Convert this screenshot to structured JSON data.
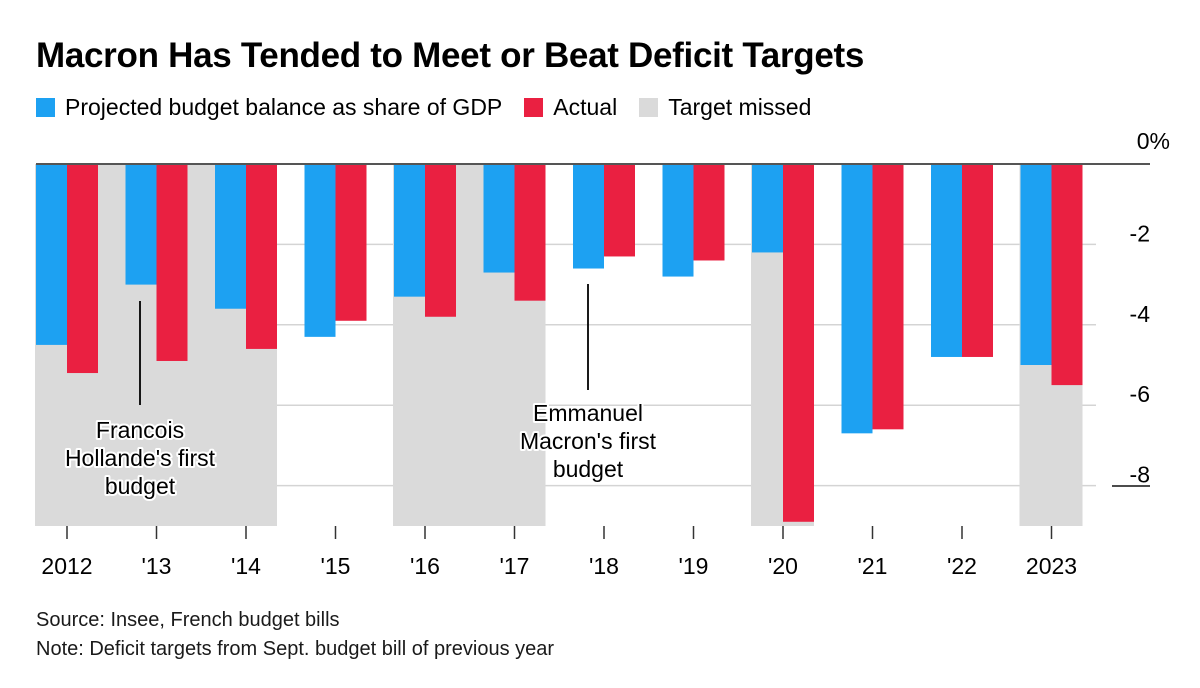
{
  "colors": {
    "projected": "#1da1f2",
    "actual": "#ea2041",
    "missed": "#dadada",
    "grid": "#d4d4d4",
    "text": "#000000"
  },
  "chart_data": {
    "type": "bar",
    "title": "Macron Has Tended to Meet or Beat Deficit Targets",
    "legend_position": "top-left",
    "grid": true,
    "y_axis_side": "right",
    "ylim": [
      -9,
      0
    ],
    "yticks": [
      {
        "value": 0,
        "label": "0%"
      },
      {
        "value": -2,
        "label": "-2"
      },
      {
        "value": -4,
        "label": "-4"
      },
      {
        "value": -6,
        "label": "-6"
      },
      {
        "value": -8,
        "label": "-8"
      }
    ],
    "categories": [
      "2012",
      "'13",
      "'14",
      "'15",
      "'16",
      "'17",
      "'18",
      "'19",
      "'20",
      "'21",
      "'22",
      "2023"
    ],
    "series": [
      {
        "name": "Projected budget balance as share of GDP",
        "color_key": "projected",
        "values": [
          -4.5,
          -3.0,
          -3.6,
          -4.3,
          -3.3,
          -2.7,
          -2.6,
          -2.8,
          -2.2,
          -6.7,
          -4.8,
          -5.0
        ]
      },
      {
        "name": "Actual",
        "color_key": "actual",
        "values": [
          -5.2,
          -4.9,
          -4.6,
          -3.9,
          -3.8,
          -3.4,
          -2.3,
          -2.4,
          -8.9,
          -6.6,
          -4.8,
          -5.5
        ]
      }
    ],
    "target_missed": {
      "name": "Target missed",
      "ranges": [
        [
          "2012",
          "'14"
        ],
        [
          "'16",
          "'17"
        ],
        [
          "'20",
          "'20"
        ],
        [
          "2023",
          "2023"
        ]
      ]
    },
    "annotations": [
      {
        "category": "'13",
        "lines": [
          "Francois",
          "Hollande's first",
          "budget"
        ]
      },
      {
        "category": "'18",
        "lines": [
          "Emmanuel",
          "Macron's first",
          "budget"
        ]
      }
    ]
  },
  "footer": {
    "source": "Source: Insee, French budget bills",
    "note": "Note: Deficit targets from Sept. budget bill of previous year"
  }
}
